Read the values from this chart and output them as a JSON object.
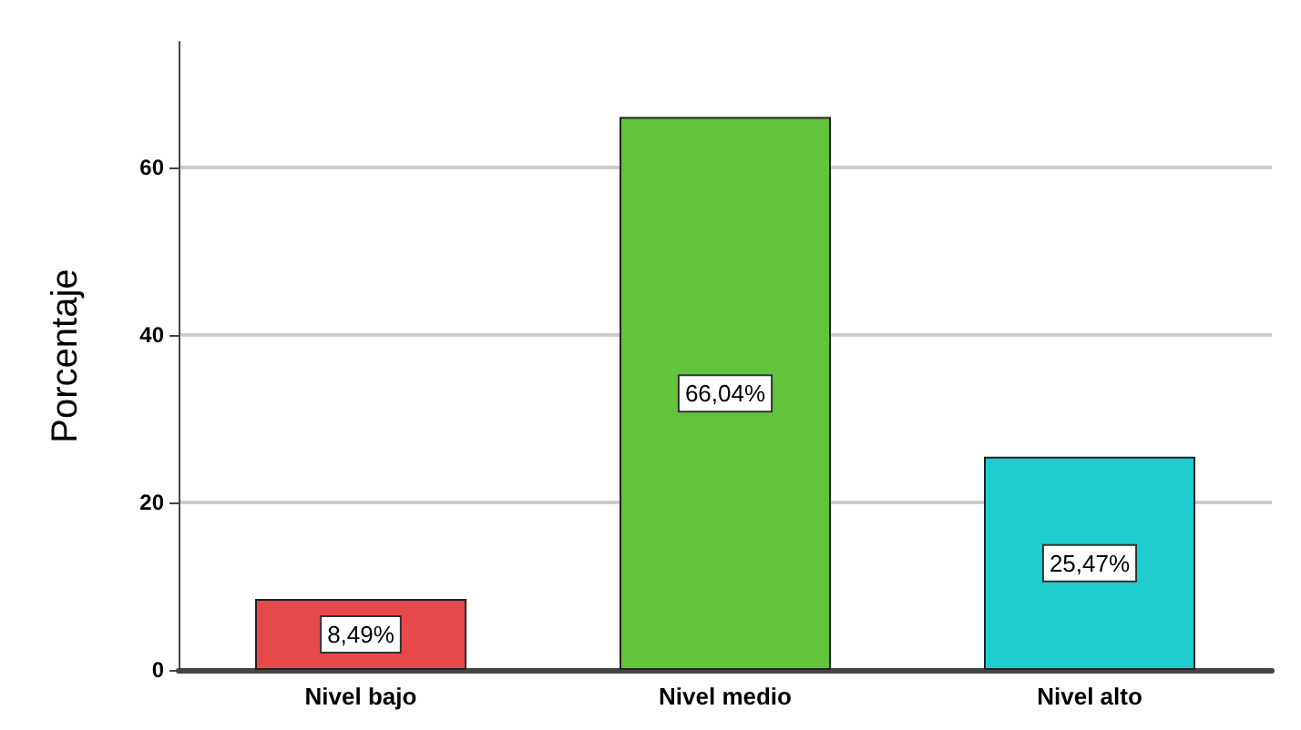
{
  "chart_data": {
    "type": "bar",
    "ylabel": "Porcentaje",
    "categories": [
      "Nivel bajo",
      "Nivel medio",
      "Nivel alto"
    ],
    "values": [
      8.49,
      66.04,
      25.47
    ],
    "colors": [
      "#e84a4c",
      "#62c43a",
      "#1fcdd0"
    ],
    "value_labels": [
      "8,49%",
      "66,04%",
      "25,47%"
    ],
    "ylim": [
      0,
      75
    ],
    "yticks": [
      0,
      20,
      40,
      60
    ],
    "grid": "y"
  }
}
